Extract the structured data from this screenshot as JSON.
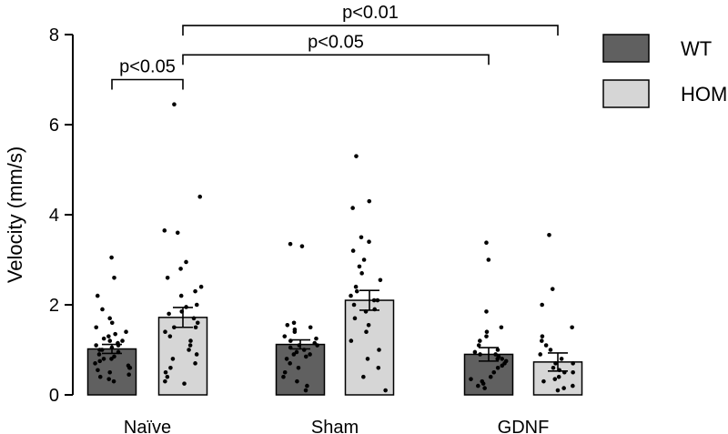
{
  "chart_data": {
    "type": "bar",
    "title": "",
    "xlabel": "",
    "ylabel": "Velocity (mm/s)",
    "ylim": [
      0,
      8
    ],
    "yticks": [
      0,
      2,
      4,
      6,
      8
    ],
    "categories": [
      "Naïve",
      "Sham",
      "GDNF"
    ],
    "series": [
      {
        "name": "WT",
        "color": "#606060",
        "values": [
          1.02,
          1.12,
          0.9
        ],
        "sem": [
          0.1,
          0.1,
          0.15
        ],
        "points": [
          [
            3.05,
            2.6,
            2.2,
            1.9,
            1.7,
            1.6,
            1.5,
            1.4,
            1.35,
            1.3,
            1.25,
            1.2,
            1.15,
            1.1,
            1.05,
            1.0,
            0.95,
            0.9,
            0.85,
            0.8,
            0.75,
            0.7,
            0.65,
            0.6,
            0.55,
            0.5,
            0.45,
            0.4,
            0.35,
            0.3,
            1.1,
            0.8,
            1.0,
            0.6,
            1.2
          ],
          [
            3.35,
            3.3,
            1.6,
            1.55,
            1.5,
            1.45,
            1.4,
            1.3,
            1.25,
            1.2,
            1.15,
            1.1,
            1.05,
            1.0,
            0.95,
            0.9,
            0.85,
            0.8,
            0.7,
            0.6,
            0.5,
            0.4,
            0.3,
            0.2,
            0.1,
            1.1,
            0.9
          ],
          [
            3.38,
            3.0,
            1.85,
            1.5,
            1.4,
            1.3,
            1.2,
            1.1,
            1.0,
            0.95,
            0.9,
            0.85,
            0.8,
            0.75,
            0.7,
            0.65,
            0.6,
            0.5,
            0.4,
            0.35,
            0.3,
            0.25,
            0.2,
            0.15,
            0.9,
            0.8
          ]
        ]
      },
      {
        "name": "HOM",
        "color": "#d6d6d6",
        "values": [
          1.72,
          2.1,
          0.73
        ],
        "sem": [
          0.22,
          0.22,
          0.2
        ],
        "points": [
          [
            6.45,
            4.4,
            3.65,
            3.6,
            2.95,
            2.8,
            2.6,
            2.4,
            2.2,
            2.0,
            1.95,
            1.85,
            1.8,
            1.7,
            1.6,
            1.5,
            1.4,
            1.3,
            1.2,
            1.1,
            1.0,
            0.9,
            0.8,
            0.7,
            0.6,
            0.5,
            0.4,
            0.3,
            0.25,
            2.3,
            1.5
          ],
          [
            5.3,
            4.3,
            4.15,
            3.5,
            3.4,
            3.2,
            3.0,
            2.85,
            2.7,
            2.55,
            2.4,
            2.3,
            2.2,
            2.1,
            2.0,
            1.85,
            1.7,
            1.55,
            1.4,
            1.2,
            1.0,
            0.8,
            0.6,
            0.4,
            0.1,
            2.1,
            1.9
          ],
          [
            3.55,
            2.35,
            2.0,
            1.5,
            1.3,
            1.2,
            1.1,
            1.0,
            0.9,
            0.8,
            0.7,
            0.6,
            0.55,
            0.5,
            0.4,
            0.35,
            0.3,
            0.2,
            0.15,
            0.1,
            0.7,
            0.5
          ]
        ]
      }
    ],
    "legend": {
      "placement": "right"
    },
    "grid": false,
    "annotations": [
      {
        "from": {
          "category": 0,
          "series": 0
        },
        "to": {
          "category": 0,
          "series": 1
        },
        "label": "p<0.05",
        "level": 7.0
      },
      {
        "from": {
          "category": 0,
          "series": 1
        },
        "to": {
          "category": 2,
          "series": 0
        },
        "label": "p<0.05",
        "level": 7.55
      },
      {
        "from": {
          "category": 0,
          "series": 1
        },
        "to": {
          "category": 2,
          "series": 1
        },
        "label": "p<0.01",
        "level": 8.2
      }
    ]
  }
}
